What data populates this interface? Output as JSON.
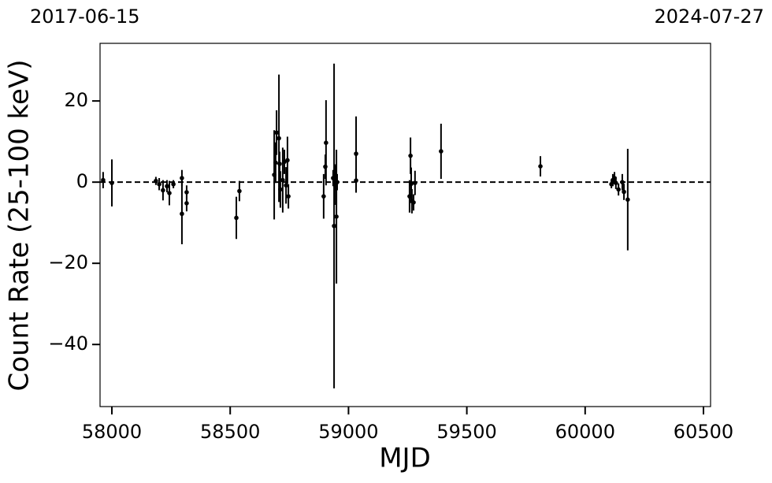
{
  "chart_data": {
    "type": "errorbar",
    "top_left_label": "2017-06-15",
    "top_right_label": "2024-07-27",
    "x_label": "MJD",
    "y_label": "Count Rate (25-100 keV)",
    "xlim": [
      57950,
      60530
    ],
    "ylim": [
      -55.3,
      34.2
    ],
    "xticks": [
      58000,
      58500,
      59000,
      59500,
      60000,
      60500
    ],
    "yticks": [
      {
        "value": -40,
        "label": "−40"
      },
      {
        "value": -20,
        "label": "−20"
      },
      0,
      20
    ],
    "hline": 0,
    "series": [
      {
        "color": "#000000",
        "x": [
          57963,
          58000,
          58186,
          58200,
          58216,
          58233,
          58243,
          58260,
          58296,
          58296,
          58316,
          58316,
          58526,
          58539,
          58686,
          58692,
          58696,
          58706,
          58709,
          58712,
          58722,
          58729,
          58736,
          58742,
          58746,
          58895,
          58902,
          58905,
          58935,
          58939,
          58942,
          58945,
          58949,
          58952,
          59032,
          59032,
          59258,
          59262,
          59265,
          59268,
          59275,
          59281,
          59391,
          59811,
          60111,
          60117,
          60124,
          60130,
          60141,
          60157,
          60164,
          60180
        ],
        "values": [
          0.5,
          -0.2,
          0.3,
          -0.5,
          -2,
          -1,
          -2.7,
          -0.5,
          1,
          -7.8,
          -2.5,
          -5.2,
          -8.8,
          -2.2,
          1.8,
          4.8,
          12.2,
          10.8,
          4.5,
          -1.8,
          0.5,
          5,
          -0.8,
          5.4,
          -3.5,
          -3.5,
          3.8,
          9.7,
          1,
          -10.8,
          -0.6,
          1,
          -8.5,
          0,
          7,
          0.4,
          -3.5,
          6.5,
          -0.4,
          -4.7,
          -5,
          -0.2,
          7.6,
          3.9,
          -0.5,
          0.5,
          1,
          -0.2,
          -1.8,
          0,
          -2.4,
          -4.3
        ],
        "errors": [
          2,
          5.8,
          1,
          1.5,
          2.5,
          1.5,
          3,
          1,
          2,
          7.5,
          1.7,
          2,
          5.2,
          2.5,
          11,
          5,
          5.5,
          15.7,
          3,
          4.5,
          8,
          3,
          4.5,
          5.8,
          3,
          5.5,
          3,
          10.5,
          2,
          40,
          5,
          3,
          16.5,
          2,
          9.2,
          3,
          4,
          4.5,
          4,
          3,
          2,
          3,
          6.8,
          2.5,
          1,
          1.5,
          1.5,
          1.5,
          1.5,
          2,
          2,
          12.5
        ]
      }
    ]
  }
}
